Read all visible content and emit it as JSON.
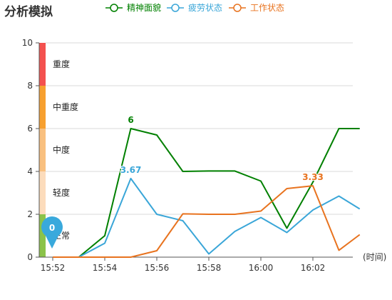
{
  "chart_data": {
    "type": "line",
    "title": "分析模拟",
    "xlabel": "(时间)",
    "ylabel": "",
    "ylim": [
      0,
      10
    ],
    "yticks": [
      0,
      2,
      4,
      6,
      8,
      10
    ],
    "x": [
      "15:52",
      "15:53",
      "15:54",
      "15:55",
      "15:56",
      "15:57",
      "15:58",
      "15:59",
      "16:00",
      "16:01",
      "16:02",
      "16:03",
      "16:03:30"
    ],
    "xtick_labels": [
      "15:52",
      "15:54",
      "15:56",
      "15:58",
      "16:00",
      "16:02"
    ],
    "xtick_positions": [
      0,
      2,
      4,
      6,
      8,
      10
    ],
    "x_max": 11.8,
    "grid": true,
    "legend_position": "top-center",
    "series": [
      {
        "name": "精神面貌",
        "color": "#008000",
        "values": [
          0,
          0,
          1,
          6,
          5.7,
          4,
          4.02,
          4.02,
          3.55,
          1.35,
          3.5,
          6,
          6
        ],
        "x_index": [
          0,
          1,
          2,
          3,
          4,
          5,
          6,
          7,
          8,
          9,
          10,
          11,
          11.8
        ],
        "label_index": 3,
        "label": "6"
      },
      {
        "name": "疲劳状态",
        "color": "#3aa6d8",
        "values": [
          0,
          0,
          0.65,
          3.67,
          2,
          1.7,
          0.15,
          1.2,
          1.85,
          1.15,
          2.2,
          2.85,
          2.25
        ],
        "x_index": [
          0,
          1,
          2,
          3,
          4,
          5,
          6,
          7,
          8,
          9,
          10,
          11,
          11.8
        ],
        "label_index": 3,
        "label": "3.67"
      },
      {
        "name": "工作状态",
        "color": "#e8731f",
        "values": [
          0,
          0,
          0,
          0,
          0.3,
          2.02,
          2,
          2,
          2.15,
          3.2,
          3.33,
          0.32,
          1.05
        ],
        "x_index": [
          0,
          1,
          2,
          3,
          4,
          5,
          6,
          7,
          8,
          9,
          10,
          11,
          11.8
        ],
        "label_index": 10,
        "label": "3.33"
      }
    ],
    "bands": [
      {
        "label": "正常",
        "from": 0,
        "to": 2,
        "color": "#8bc34a"
      },
      {
        "label": "轻度",
        "from": 2,
        "to": 4,
        "color": "#fcdcbc"
      },
      {
        "label": "中度",
        "from": 4,
        "to": 6,
        "color": "#f9c07f"
      },
      {
        "label": "中重度",
        "from": 6,
        "to": 8,
        "color": "#f7a02f"
      },
      {
        "label": "重度",
        "from": 8,
        "to": 10,
        "color": "#f4514f"
      }
    ],
    "marker": {
      "value": "0",
      "color": "#39a9dc"
    }
  }
}
